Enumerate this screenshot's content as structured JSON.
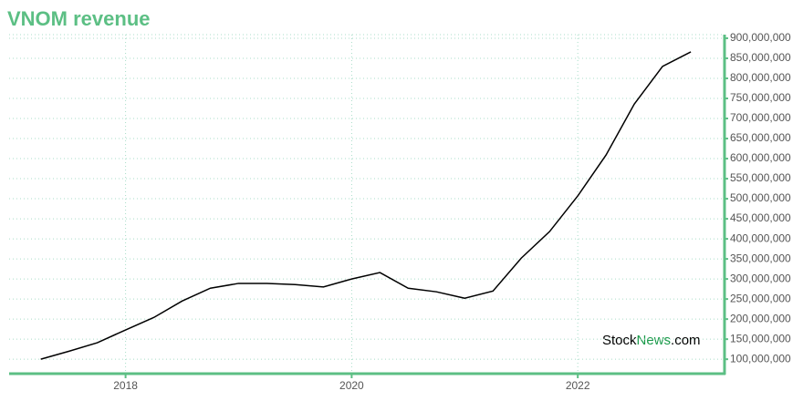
{
  "chart_data": {
    "type": "line",
    "title": "VNOM revenue",
    "x": [
      2017.25,
      2017.5,
      2017.75,
      2018.0,
      2018.25,
      2018.5,
      2018.75,
      2019.0,
      2019.25,
      2019.5,
      2019.75,
      2020.0,
      2020.25,
      2020.5,
      2020.75,
      2021.0,
      2021.25,
      2021.5,
      2021.75,
      2022.0,
      2022.25,
      2022.5,
      2022.75,
      2023.0
    ],
    "series": [
      {
        "name": "revenue",
        "color": "#000000",
        "values": [
          100000000,
          120000000,
          141000000,
          173000000,
          204000000,
          245000000,
          277000000,
          289000000,
          289000000,
          286000000,
          280000000,
          300000000,
          316000000,
          277000000,
          268000000,
          252000000,
          270000000,
          352000000,
          418000000,
          507000000,
          609000000,
          736000000,
          830000000,
          866000000
        ]
      }
    ],
    "xlim": [
      2016.97,
      2023.29
    ],
    "xticks": [
      2018,
      2020,
      2022
    ],
    "ylim": [
      64000000,
      909000000
    ],
    "yticks": [
      {
        "value": 100000000,
        "label": "100,000,000"
      },
      {
        "value": 150000000,
        "label": "150,000,000"
      },
      {
        "value": 200000000,
        "label": "200,000,000"
      },
      {
        "value": 250000000,
        "label": "250,000,000"
      },
      {
        "value": 300000000,
        "label": "300,000,000"
      },
      {
        "value": 350000000,
        "label": "350,000,000"
      },
      {
        "value": 400000000,
        "label": "400,000,000"
      },
      {
        "value": 450000000,
        "label": "450,000,000"
      },
      {
        "value": 500000000,
        "label": "500,000,000"
      },
      {
        "value": 550000000,
        "label": "550,000,000"
      },
      {
        "value": 600000000,
        "label": "600,000,000"
      },
      {
        "value": 650000000,
        "label": "650,000,000"
      },
      {
        "value": 700000000,
        "label": "700,000,000"
      },
      {
        "value": 750000000,
        "label": "750,000,000"
      },
      {
        "value": 800000000,
        "label": "800,000,000"
      },
      {
        "value": 850000000,
        "label": "850,000,000"
      },
      {
        "value": 900000000,
        "label": "900,000,000"
      }
    ],
    "grid": true,
    "axis_color": "#5cbf84",
    "watermark": [
      "Stock",
      "News",
      ".com"
    ]
  }
}
